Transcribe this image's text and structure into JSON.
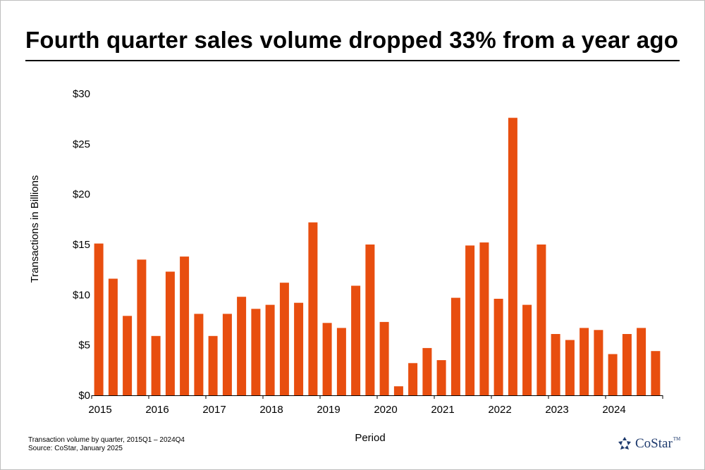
{
  "title": "Fourth quarter sales volume dropped 33% from a year ago",
  "colors": {
    "bar": "#E84E0F",
    "axis": "#000000",
    "logo": "#1F3B6E"
  },
  "footnote": {
    "line1": "Transaction volume by quarter, 2015Q1 – 2024Q4",
    "line2": "Source: CoStar, January 2025"
  },
  "logo": {
    "text": "CoStar",
    "tm": "TM",
    "icon": "costar-star-icon"
  },
  "chart_data": {
    "type": "bar",
    "title": "Fourth quarter sales volume dropped 33% from a year ago",
    "xlabel": "Period",
    "ylabel": "Transactions in Billions",
    "ylim": [
      0,
      30
    ],
    "yticks": [
      0,
      5,
      10,
      15,
      20,
      25,
      30
    ],
    "ytick_labels": [
      "$0",
      "$5",
      "$10",
      "$15",
      "$20",
      "$25",
      "$30"
    ],
    "year_labels": [
      "2015",
      "2016",
      "2017",
      "2018",
      "2019",
      "2020",
      "2021",
      "2022",
      "2023",
      "2024"
    ],
    "categories": [
      "2015Q1",
      "2015Q2",
      "2015Q3",
      "2015Q4",
      "2016Q1",
      "2016Q2",
      "2016Q3",
      "2016Q4",
      "2017Q1",
      "2017Q2",
      "2017Q3",
      "2017Q4",
      "2018Q1",
      "2018Q2",
      "2018Q3",
      "2018Q4",
      "2019Q1",
      "2019Q2",
      "2019Q3",
      "2019Q4",
      "2020Q1",
      "2020Q2",
      "2020Q3",
      "2020Q4",
      "2021Q1",
      "2021Q2",
      "2021Q3",
      "2021Q4",
      "2022Q1",
      "2022Q2",
      "2022Q3",
      "2022Q4",
      "2023Q1",
      "2023Q2",
      "2023Q3",
      "2023Q4",
      "2024Q1",
      "2024Q2",
      "2024Q3",
      "2024Q4"
    ],
    "values": [
      15.1,
      11.6,
      7.9,
      13.5,
      5.9,
      12.3,
      13.8,
      8.1,
      5.9,
      8.1,
      9.8,
      8.6,
      9.0,
      11.2,
      9.2,
      17.2,
      7.2,
      6.7,
      10.9,
      15.0,
      7.3,
      0.9,
      3.2,
      4.7,
      3.5,
      9.7,
      14.9,
      15.2,
      9.6,
      27.6,
      9.0,
      15.0,
      6.1,
      5.5,
      6.7,
      6.5,
      4.1,
      6.1,
      6.7,
      4.4
    ]
  }
}
